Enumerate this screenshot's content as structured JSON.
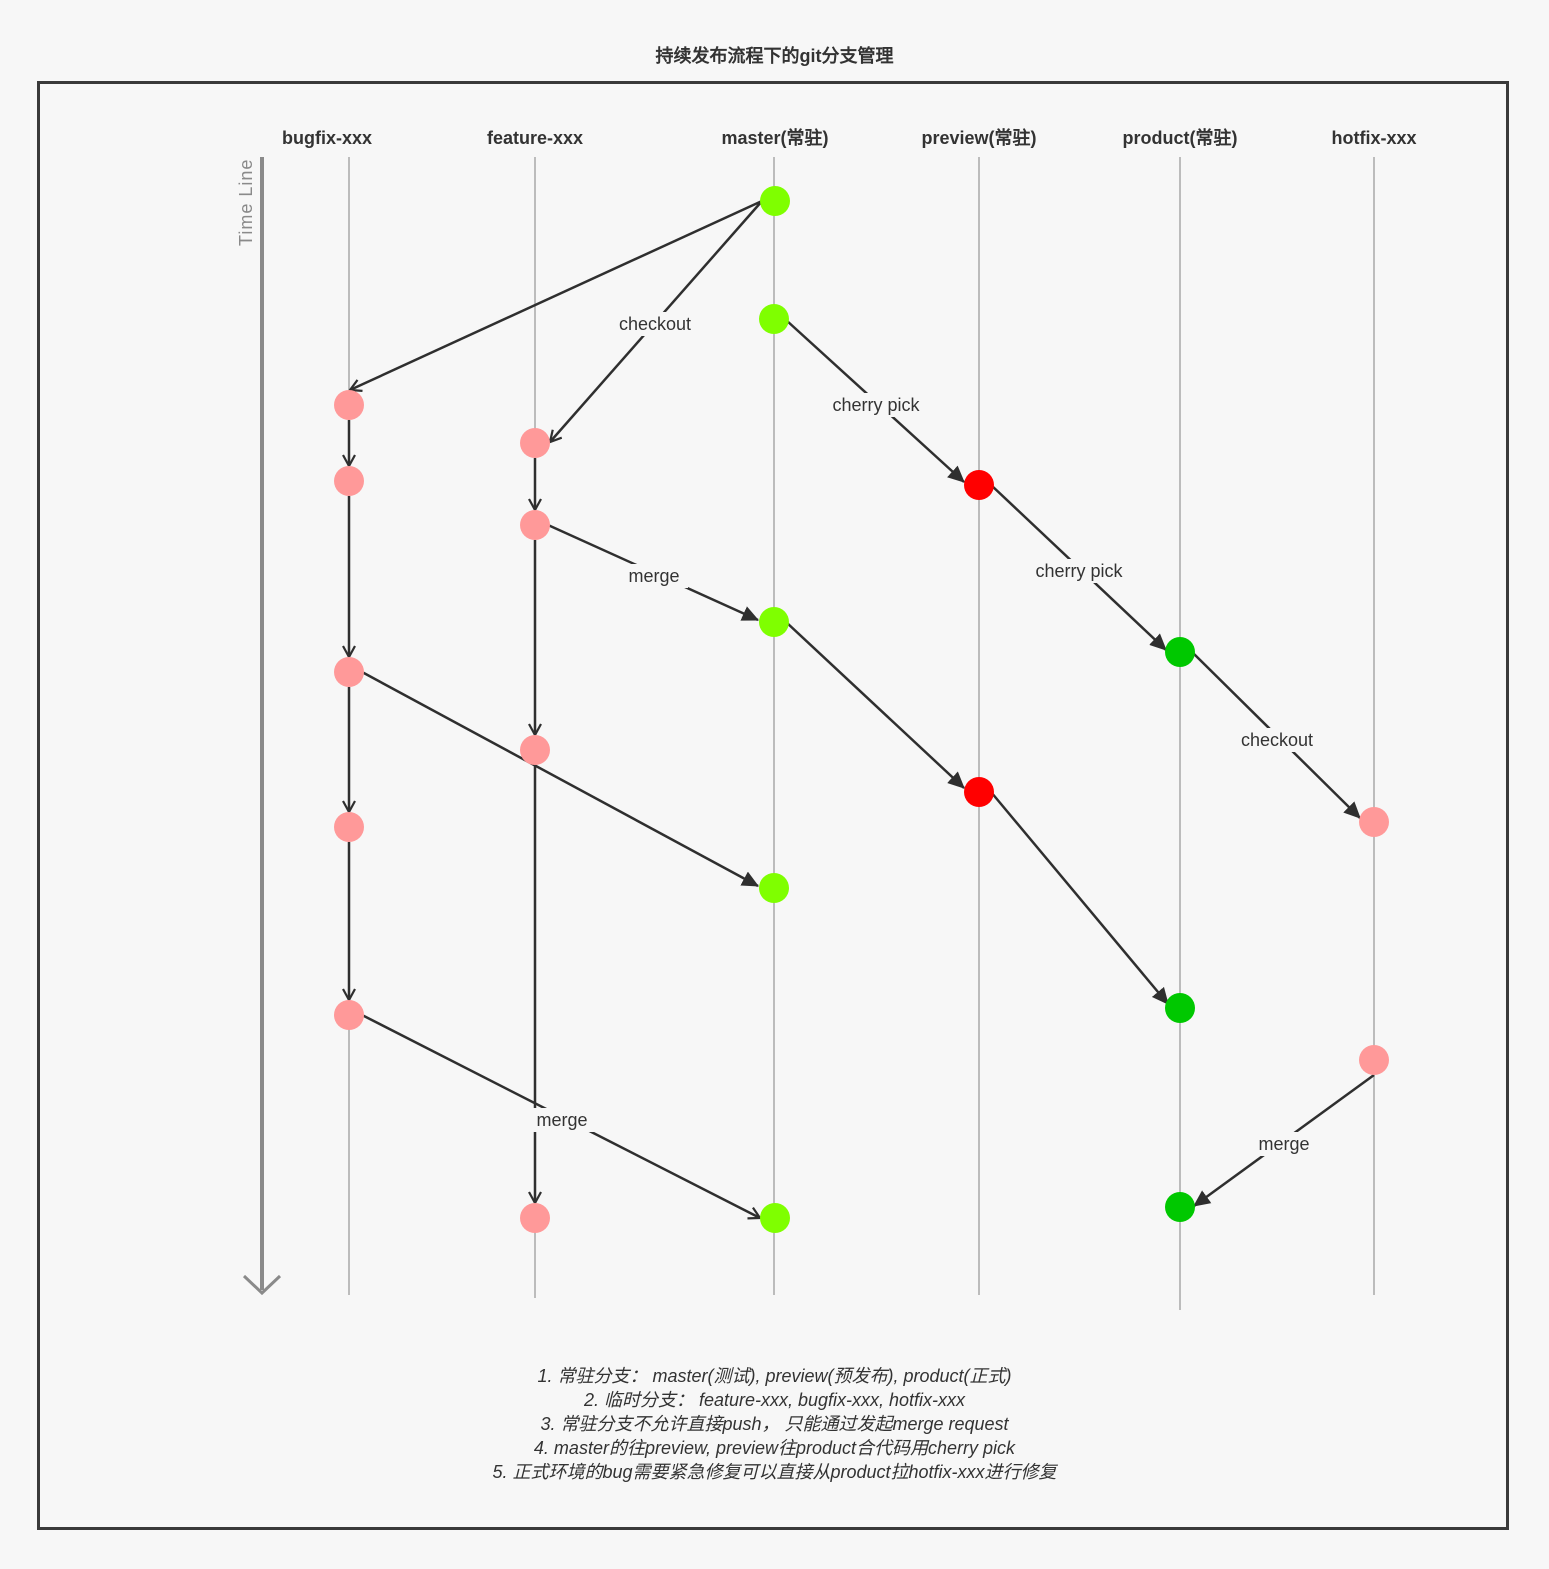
{
  "title": "持续发布流程下的git分支管理",
  "timeline_label": "Time Line",
  "branches": [
    {
      "key": "bugfix",
      "label": "bugfix-xxx",
      "bold": true
    },
    {
      "key": "feature",
      "label": "feature-xxx",
      "bold": true
    },
    {
      "key": "master",
      "label": "master(常驻)",
      "bold": true
    },
    {
      "key": "preview",
      "label": "preview(常驻)",
      "bold": true
    },
    {
      "key": "product",
      "label": "product(常驻)",
      "bold": true
    },
    {
      "key": "hotfix",
      "label": "hotfix-xxx",
      "bold": true
    }
  ],
  "colors": {
    "master_commit": "#7fff00",
    "preview_commit": "#ff0000",
    "product_commit": "#00c800",
    "temp_commit": "#ff9999",
    "arrow": "#2f2f2f",
    "branch_line": "#a8a8a8",
    "timeline": "#8a8a8a"
  },
  "edge_labels": {
    "checkout_feature": "checkout",
    "cherry_pick_preview": "cherry pick",
    "merge_feature": "merge",
    "cherry_pick_product": "cherry pick",
    "checkout_hotfix": "checkout",
    "merge_bugfix": "merge",
    "merge_hotfix": "merge"
  },
  "notes": [
    "1. 常驻分支：  master(测试), preview(预发布), product(正式)",
    "2. 临时分支：  feature-xxx, bugfix-xxx, hotfix-xxx",
    "3. 常驻分支不允许直接push，  只能通过发起merge request",
    "4. master的往preview, preview往product合代码用cherry pick",
    "5. 正式环境的bug需要紧急修复可以直接从product拉hotfix-xxx进行修复"
  ]
}
